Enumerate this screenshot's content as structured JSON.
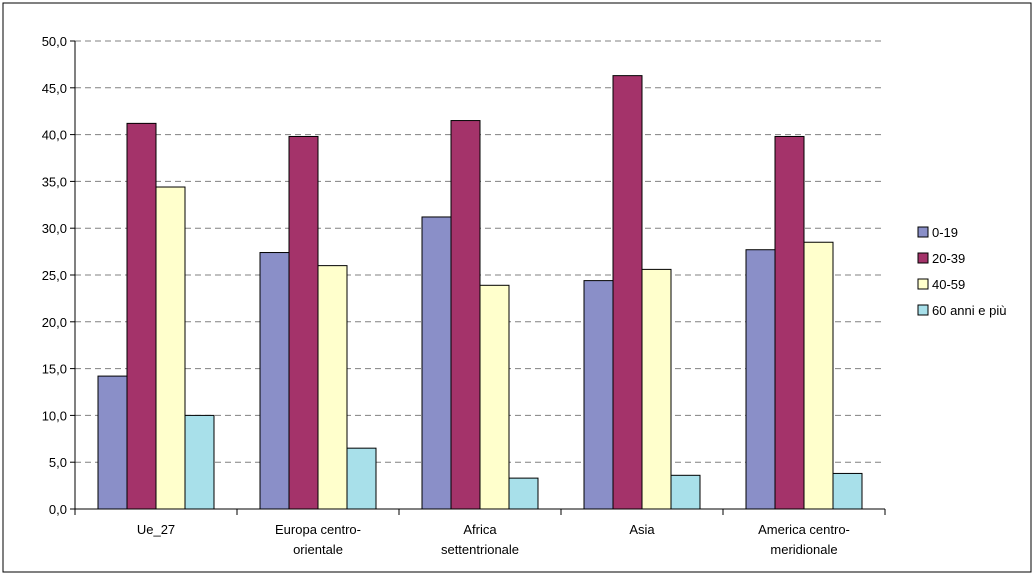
{
  "chart_data": {
    "type": "bar",
    "categories": [
      [
        "Ue_27"
      ],
      [
        "Europa centro-",
        "orientale"
      ],
      [
        "Africa",
        "settentrionale"
      ],
      [
        "Asia"
      ],
      [
        "America centro-",
        "meridionale"
      ]
    ],
    "series": [
      {
        "name": "0-19",
        "color": "#8A8FC8",
        "values": [
          14.2,
          27.4,
          31.2,
          24.4,
          27.7
        ]
      },
      {
        "name": "20-39",
        "color": "#A4336A",
        "values": [
          41.2,
          39.8,
          41.5,
          46.3,
          39.8
        ]
      },
      {
        "name": "40-59",
        "color": "#FFFFCC",
        "values": [
          34.4,
          26.0,
          23.9,
          25.6,
          28.5
        ]
      },
      {
        "name": "60 anni e più",
        "color": "#A8E0EA",
        "values": [
          10.0,
          6.5,
          3.3,
          3.6,
          3.8
        ]
      }
    ],
    "yticks": [
      "0,0",
      "5,0",
      "10,0",
      "15,0",
      "20,0",
      "25,0",
      "30,0",
      "35,0",
      "40,0",
      "45,0",
      "50,0"
    ],
    "ylim": [
      0,
      50
    ],
    "grid": true,
    "legend": "right"
  }
}
